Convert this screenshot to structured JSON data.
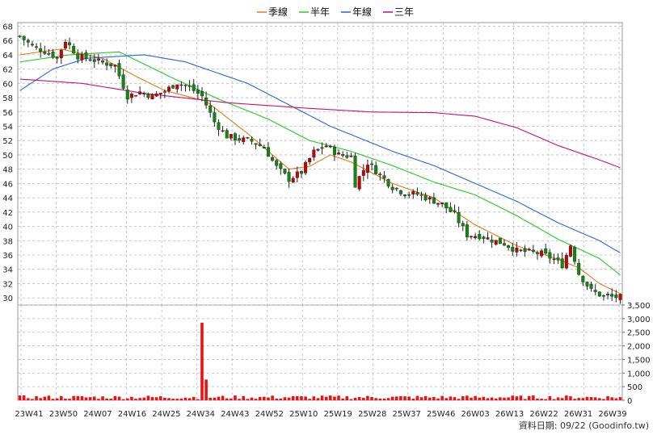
{
  "chart_data": {
    "type": "candlestick",
    "legend": [
      {
        "name": "季線",
        "color": "#e07a1c"
      },
      {
        "name": "半年",
        "color": "#22cc22"
      },
      {
        "name": "年線",
        "color": "#2266dd"
      },
      {
        "name": "三年",
        "color": "#cc1166"
      }
    ],
    "legend_position": "top-center",
    "colors": {
      "up": "#cc0000",
      "down": "#118811",
      "volume": "#ee1111",
      "grid": "#bbbbbb"
    },
    "price_axis": {
      "range": [
        29,
        68.5
      ],
      "ticks": [
        "30",
        "32",
        "34",
        "36",
        "38",
        "40",
        "42",
        "44",
        "46",
        "48",
        "50",
        "52",
        "54",
        "56",
        "58",
        "60",
        "62",
        "64",
        "66",
        "68"
      ]
    },
    "volume_axis": {
      "range": [
        0,
        3500
      ],
      "ticks": [
        "0",
        "500",
        "1,000",
        "1,500",
        "2,000",
        "2,500",
        "3,000",
        "3,500"
      ]
    },
    "x_labels": [
      "23W41",
      "23W50",
      "24W07",
      "24W16",
      "24W25",
      "24W34",
      "24W43",
      "24W52",
      "25W10",
      "25W19",
      "25W28",
      "25W37",
      "25W46",
      "26W03",
      "26W13",
      "26W22",
      "26W31",
      "26W39"
    ],
    "grid": true,
    "close_anchors": [
      [
        0,
        66.6
      ],
      [
        3,
        65.2
      ],
      [
        6,
        64.5
      ],
      [
        9,
        63.6
      ],
      [
        11,
        66.0
      ],
      [
        14,
        63.8
      ],
      [
        17,
        63.4
      ],
      [
        20,
        62.9
      ],
      [
        23,
        62.5
      ],
      [
        26,
        58.2
      ],
      [
        29,
        58.8
      ],
      [
        32,
        58.2
      ],
      [
        35,
        58.9
      ],
      [
        38,
        60.1
      ],
      [
        41,
        59.4
      ],
      [
        44,
        58.2
      ],
      [
        47,
        54.6
      ],
      [
        50,
        52.6
      ],
      [
        53,
        52.2
      ],
      [
        56,
        51.9
      ],
      [
        59,
        51.0
      ],
      [
        62,
        48.3
      ],
      [
        65,
        46.6
      ],
      [
        68,
        47.6
      ],
      [
        71,
        50.4
      ],
      [
        74,
        51.3
      ],
      [
        77,
        50.0
      ],
      [
        80,
        49.8
      ],
      [
        81,
        45.9
      ],
      [
        84,
        48.9
      ],
      [
        87,
        47.2
      ],
      [
        90,
        45.5
      ],
      [
        93,
        44.6
      ],
      [
        96,
        44.5
      ],
      [
        99,
        43.8
      ],
      [
        102,
        43.1
      ],
      [
        105,
        41.6
      ],
      [
        108,
        38.8
      ],
      [
        111,
        38.7
      ],
      [
        114,
        38.1
      ],
      [
        117,
        37.6
      ],
      [
        120,
        36.6
      ],
      [
        123,
        36.4
      ],
      [
        126,
        36.2
      ],
      [
        129,
        35.4
      ],
      [
        131,
        34.6
      ],
      [
        133,
        37.4
      ],
      [
        135,
        33.4
      ],
      [
        138,
        31.0
      ],
      [
        141,
        30.2
      ],
      [
        145,
        30.1
      ]
    ],
    "volume_spike": {
      "index": 44,
      "value": 2850,
      "next_value": 760
    },
    "ma_anchors": {
      "季線": [
        [
          0,
          64.0
        ],
        [
          10,
          64.8
        ],
        [
          20,
          63.5
        ],
        [
          28,
          61.0
        ],
        [
          35,
          59.0
        ],
        [
          45,
          57.5
        ],
        [
          55,
          53.0
        ],
        [
          65,
          48.0
        ],
        [
          70,
          48.4
        ],
        [
          75,
          50.0
        ],
        [
          80,
          49.0
        ],
        [
          90,
          46.0
        ],
        [
          100,
          44.0
        ],
        [
          110,
          40.2
        ],
        [
          120,
          37.3
        ],
        [
          130,
          35.4
        ],
        [
          135,
          34.2
        ],
        [
          140,
          32.0
        ],
        [
          145,
          30.6
        ]
      ],
      "半年": [
        [
          0,
          63.0
        ],
        [
          12,
          64.0
        ],
        [
          24,
          64.4
        ],
        [
          36,
          61.0
        ],
        [
          48,
          57.8
        ],
        [
          60,
          55.0
        ],
        [
          70,
          52.0
        ],
        [
          80,
          50.5
        ],
        [
          90,
          48.5
        ],
        [
          100,
          46.2
        ],
        [
          110,
          44.4
        ],
        [
          120,
          41.5
        ],
        [
          130,
          38.2
        ],
        [
          140,
          35.5
        ],
        [
          145,
          33.2
        ]
      ],
      "年線": [
        [
          0,
          59.0
        ],
        [
          8,
          62.0
        ],
        [
          16,
          63.5
        ],
        [
          30,
          64.0
        ],
        [
          40,
          63.0
        ],
        [
          55,
          60.0
        ],
        [
          65,
          57.0
        ],
        [
          75,
          54.0
        ],
        [
          90,
          50.5
        ],
        [
          100,
          48.5
        ],
        [
          110,
          46.0
        ],
        [
          120,
          43.5
        ],
        [
          130,
          40.5
        ],
        [
          140,
          38.0
        ],
        [
          145,
          36.3
        ]
      ],
      "三年": [
        [
          0,
          60.6
        ],
        [
          15,
          60.0
        ],
        [
          30,
          58.6
        ],
        [
          50,
          57.3
        ],
        [
          70,
          56.5
        ],
        [
          85,
          56.0
        ],
        [
          100,
          55.9
        ],
        [
          110,
          55.4
        ],
        [
          120,
          53.8
        ],
        [
          130,
          51.3
        ],
        [
          140,
          49.3
        ],
        [
          145,
          48.2
        ]
      ]
    },
    "candle_count": 146,
    "footer_text": "資料日期: 09/22  (Goodinfo.tw)"
  }
}
